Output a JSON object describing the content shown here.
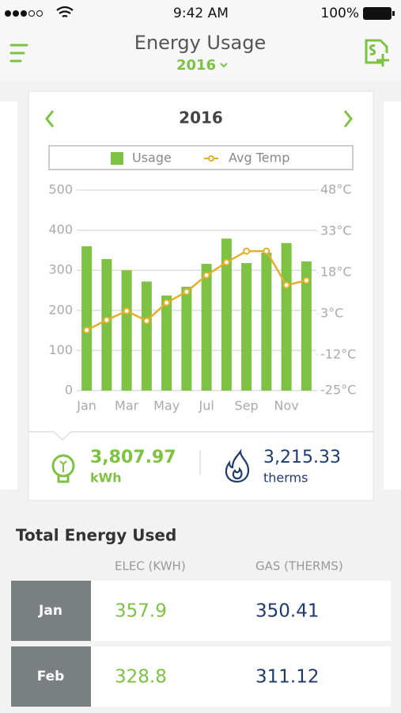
{
  "status": {
    "time": "9:42 AM",
    "battery": "100%"
  },
  "header": {
    "title": "Energy Usage",
    "year": "2016"
  },
  "chart_data": {
    "type": "bar",
    "title": "2016",
    "categories": [
      "Jan",
      null,
      "Mar",
      null,
      "May",
      null,
      "Jul",
      null,
      "Sep",
      null,
      "Nov",
      null
    ],
    "series": [
      {
        "name": "Usage",
        "type": "bar",
        "color": "#7dc242",
        "values": [
          360,
          328,
          300,
          272,
          237,
          259,
          316,
          379,
          318,
          344,
          368,
          322
        ]
      },
      {
        "name": "Avg Temp",
        "type": "line",
        "axis": "y2",
        "color": "#e3b02b",
        "values": [
          -3,
          0.7,
          4,
          0.4,
          7,
          11,
          17,
          21.7,
          25.8,
          25.8,
          13.4,
          15.1
        ]
      }
    ],
    "ylim": [
      0,
      500
    ],
    "yticks": [
      0,
      100,
      200,
      300,
      400,
      500
    ],
    "y2lim": [
      -25,
      48
    ],
    "y2ticks": [
      {
        "value": -25,
        "label": "-25°C"
      },
      {
        "value": -12,
        "label": "-12°C"
      },
      {
        "value": 3,
        "label": "3°C"
      },
      {
        "value": 18,
        "label": "18°C"
      },
      {
        "value": 33,
        "label": "33°C"
      },
      {
        "value": 48,
        "label": "48°C"
      }
    ],
    "grid": true,
    "legend": "top"
  },
  "summary": {
    "electric": {
      "value": "3,807.97",
      "unit": "kWh"
    },
    "gas": {
      "value": "3,215.33",
      "unit": "therms"
    }
  },
  "table": {
    "title": "Total Energy Used",
    "columns": [
      "ELEC (KWH)",
      "GAS (THERMS)"
    ],
    "rows": [
      [
        "Jan",
        "357.9",
        "350.41"
      ],
      [
        "Feb",
        "328.8",
        "311.12"
      ]
    ]
  }
}
